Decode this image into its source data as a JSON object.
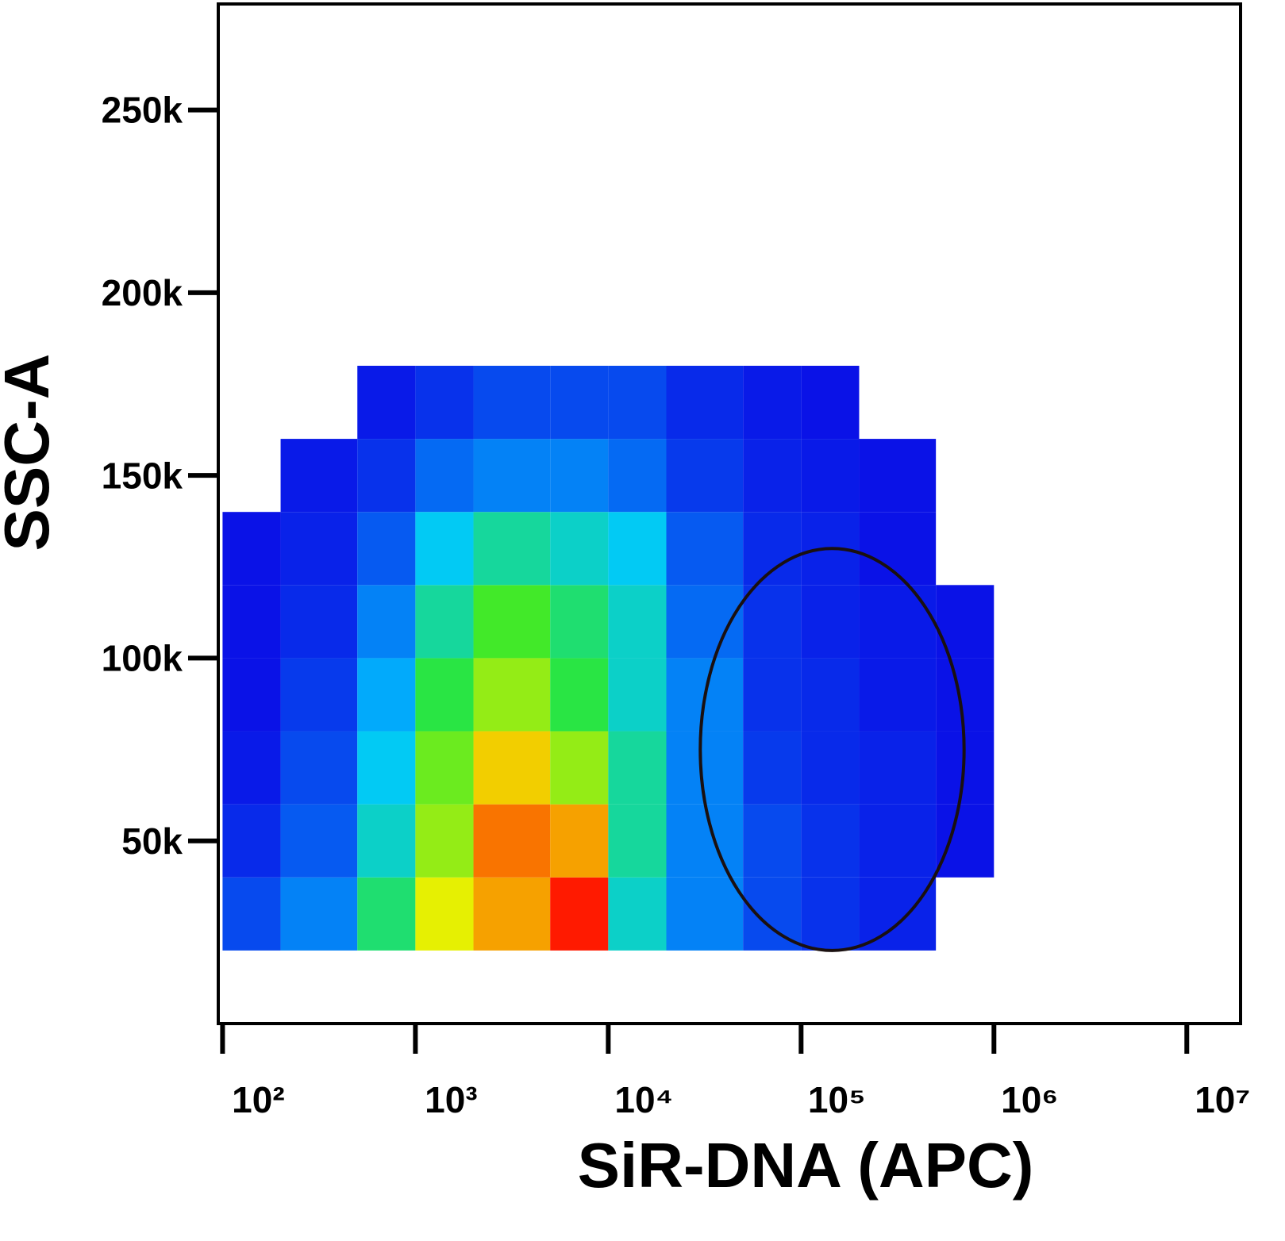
{
  "chart_data": {
    "type": "density",
    "x_label": "SiR-DNA (APC)",
    "y_label": "SSC-A",
    "xscale": "log",
    "xlim": [
      95,
      19000000
    ],
    "ylim": [
      0,
      279000
    ],
    "xticks": [
      {
        "value": 100,
        "label": "10²"
      },
      {
        "value": 1000,
        "label": "10³"
      },
      {
        "value": 10000,
        "label": "10⁴"
      },
      {
        "value": 100000,
        "label": "10⁵"
      },
      {
        "value": 1000000,
        "label": "10⁶"
      },
      {
        "value": 10000000,
        "label": "10⁷"
      }
    ],
    "yticks": [
      {
        "value": 50000,
        "label": "50k"
      },
      {
        "value": 100000,
        "label": "100k"
      },
      {
        "value": 150000,
        "label": "150k"
      },
      {
        "value": 200000,
        "label": "200k"
      },
      {
        "value": 250000,
        "label": "250k"
      }
    ],
    "x_bins": [
      100,
      200,
      500,
      1000,
      2000,
      5000,
      10000,
      20000,
      50000,
      100000,
      200000,
      500000,
      1000000
    ],
    "y_bins": [
      20000,
      40000,
      60000,
      80000,
      100000,
      120000,
      140000,
      160000,
      180000
    ],
    "counts": [
      [
        8,
        15,
        40,
        70,
        80,
        95,
        30,
        15,
        8,
        5,
        3,
        0
      ],
      [
        4,
        10,
        30,
        60,
        85,
        80,
        35,
        15,
        8,
        5,
        3,
        1
      ],
      [
        2,
        8,
        25,
        55,
        75,
        60,
        35,
        15,
        6,
        4,
        3,
        1
      ],
      [
        1,
        6,
        20,
        45,
        60,
        45,
        30,
        15,
        5,
        4,
        2,
        1
      ],
      [
        1,
        4,
        15,
        35,
        50,
        40,
        30,
        12,
        5,
        3,
        2,
        1
      ],
      [
        1,
        3,
        10,
        25,
        35,
        30,
        25,
        10,
        4,
        3,
        1,
        0
      ],
      [
        0,
        2,
        5,
        12,
        15,
        15,
        12,
        6,
        3,
        2,
        1,
        0
      ],
      [
        0,
        0,
        2,
        5,
        8,
        8,
        8,
        4,
        2,
        1,
        0,
        0
      ]
    ],
    "colors": [
      "#0a0ae6",
      "#00c8ff",
      "#2ee82e",
      "#f0f000",
      "#ff1a00"
    ],
    "gate": {
      "x": [
        30000,
        700000
      ],
      "y": [
        20000,
        130000
      ],
      "color": "#1a1010"
    }
  }
}
